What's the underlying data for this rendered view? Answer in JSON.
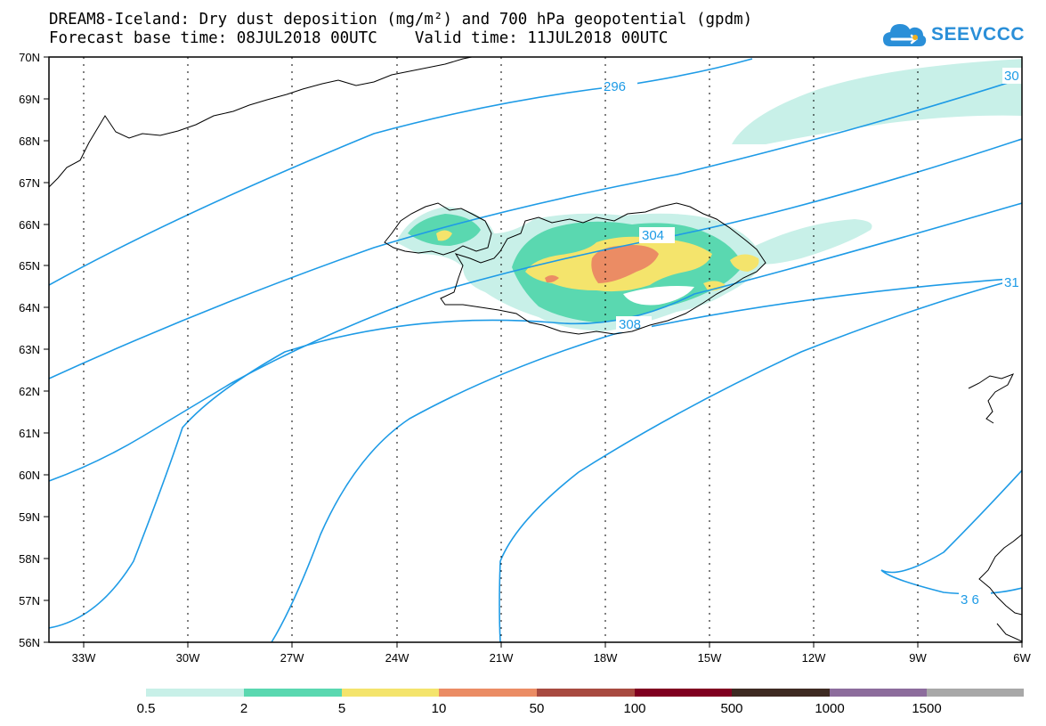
{
  "header": {
    "line1": "DREAM8-Iceland: Dry dust deposition (mg/m²) and 700 hPa geopotential (gpdm)",
    "line2": "Forecast base time: 08JUL2018 00UTC    Valid time: 11JUL2018 00UTC",
    "logo_text": "SEEVCCC"
  },
  "colors": {
    "contour": "#1e9be6",
    "coast": "#000000",
    "logo": "#2a8fd8"
  },
  "map": {
    "lat_labels": [
      "70N",
      "69N",
      "68N",
      "67N",
      "66N",
      "65N",
      "64N",
      "63N",
      "62N",
      "61N",
      "60N",
      "59N",
      "58N",
      "57N",
      "56N"
    ],
    "lon_labels": [
      "33W",
      "30W",
      "27W",
      "24W",
      "21W",
      "18W",
      "15W",
      "12W",
      "9W",
      "6W"
    ],
    "contour_labels": [
      {
        "text": "296"
      },
      {
        "text": "30"
      },
      {
        "text": "304"
      },
      {
        "text": "308"
      },
      {
        "text": "31"
      },
      {
        "text": "3 6"
      }
    ]
  },
  "legend": {
    "items": [
      {
        "label": "0.5",
        "color": "#c8f0e8"
      },
      {
        "label": "2",
        "color": "#5ad8b0"
      },
      {
        "label": "5",
        "color": "#f4e46c"
      },
      {
        "label": "10",
        "color": "#eb8c64"
      },
      {
        "label": "50",
        "color": "#a84a40"
      },
      {
        "label": "100",
        "color": "#800020"
      },
      {
        "label": "500",
        "color": "#3e2a22"
      },
      {
        "label": "1000",
        "color": "#8c6c9c"
      },
      {
        "label": "1500",
        "color": "#a8a8a8"
      }
    ]
  }
}
